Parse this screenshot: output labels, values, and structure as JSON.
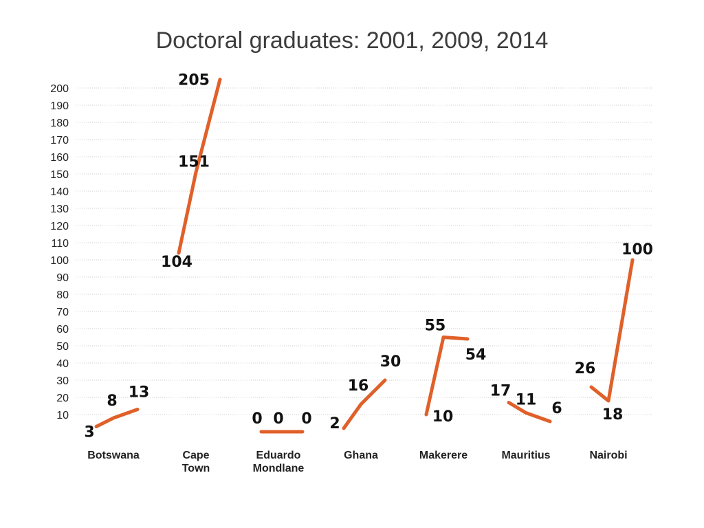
{
  "chart_data": {
    "type": "line",
    "title": "Doctoral graduates: 2001, 2009, 2014",
    "years": [
      "2001",
      "2009",
      "2014"
    ],
    "line_color": "#e0602a",
    "ylim": [
      0,
      205
    ],
    "yticks": [
      10,
      20,
      30,
      40,
      50,
      60,
      70,
      80,
      90,
      100,
      110,
      120,
      130,
      140,
      150,
      160,
      170,
      180,
      190,
      200
    ],
    "grid": true,
    "groups": [
      {
        "name": "Botswana",
        "label_lines": [
          "Botswana"
        ],
        "values": [
          3,
          8,
          13
        ]
      },
      {
        "name": "Cape Town",
        "label_lines": [
          "Cape",
          "Town"
        ],
        "values": [
          104,
          151,
          205
        ]
      },
      {
        "name": "Eduardo Mondlane",
        "label_lines": [
          "Eduardo",
          "Mondlane"
        ],
        "values": [
          0,
          0,
          0
        ]
      },
      {
        "name": "Ghana",
        "label_lines": [
          "Ghana"
        ],
        "values": [
          2,
          16,
          30
        ]
      },
      {
        "name": "Makerere",
        "label_lines": [
          "Makerere"
        ],
        "values": [
          10,
          55,
          54
        ]
      },
      {
        "name": "Mauritius",
        "label_lines": [
          "Mauritius"
        ],
        "values": [
          17,
          11,
          6
        ]
      },
      {
        "name": "Nairobi",
        "label_lines": [
          "Nairobi"
        ],
        "values": [
          26,
          18,
          100
        ]
      }
    ]
  }
}
